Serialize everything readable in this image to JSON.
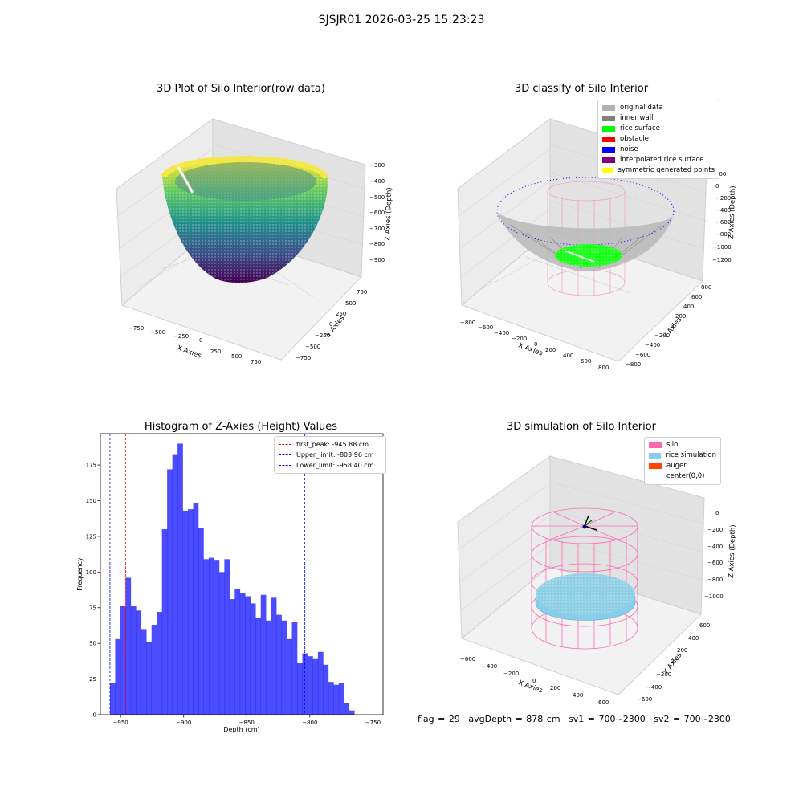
{
  "suptitle": "SJSJR01 2026-03-25 15:23:23",
  "panels": {
    "raw": {
      "title": "3D Plot of Silo Interior(row data)",
      "xlabel": "X Axies",
      "ylabel": "Y Axies",
      "zlabel": "Z Axies (Depth)",
      "xticks": [
        "−750",
        "−500",
        "−250",
        "0",
        "250",
        "500",
        "750"
      ],
      "yticks": [
        "750",
        "500",
        "250",
        "0",
        "−250",
        "−500",
        "−750"
      ],
      "zticks": [
        "−300",
        "−400",
        "−500",
        "−600",
        "−700",
        "−800",
        "−900"
      ]
    },
    "classify": {
      "title": "3D classify of Silo Interior",
      "xlabel": "X Axies",
      "ylabel": "Y Axies",
      "zlabel": "Z Axies (Depth)",
      "xticks": [
        "−800",
        "−600",
        "−400",
        "−200",
        "0",
        "200",
        "400",
        "600",
        "800"
      ],
      "yticks": [
        "800",
        "600",
        "400",
        "200",
        "0",
        "−200",
        "−400",
        "−600",
        "−800"
      ],
      "zticks": [
        "200",
        "0",
        "−200",
        "−400",
        "−600",
        "−800",
        "−1000",
        "−1200"
      ],
      "legend": [
        {
          "label": "original data",
          "color": "#b3b3b3"
        },
        {
          "label": "inner wall",
          "color": "#808080"
        },
        {
          "label": "rice surface",
          "color": "#00ff00"
        },
        {
          "label": "obstacle",
          "color": "#ff0000"
        },
        {
          "label": "noise",
          "color": "#0000ff"
        },
        {
          "label": "interpolated rice surface",
          "color": "#800080"
        },
        {
          "label": "symmetric generated points",
          "color": "#ffff00"
        }
      ]
    },
    "simulation": {
      "title": "3D simulation of Silo Interior",
      "xlabel": "X Axies",
      "ylabel": "Y Axies",
      "zlabel": "Z Axies (Depth)",
      "xticks": [
        "−600",
        "−400",
        "−200",
        "0",
        "200",
        "400",
        "600"
      ],
      "yticks": [
        "600",
        "400",
        "200",
        "0",
        "−200",
        "−400",
        "−600"
      ],
      "zticks": [
        "0",
        "−200",
        "−400",
        "−600",
        "−800",
        "−1000"
      ],
      "legend": [
        {
          "label": "silo",
          "color": "#ff69b4"
        },
        {
          "label": "rice simulation",
          "color": "#87ceeb"
        },
        {
          "label": "auger",
          "color": "#ff4500"
        },
        {
          "label": "center(0,0)",
          "color": ""
        }
      ]
    }
  },
  "chart_data": {
    "type": "bar",
    "title": "Histogram of Z-Axies (Height) Values",
    "xlabel": "Depth (cm)",
    "ylabel": "Frequency",
    "bar_color": "#0000ff",
    "xlim": [
      -966,
      -742
    ],
    "ylim": [
      0,
      197
    ],
    "xticks": [
      -950,
      -900,
      -850,
      -800,
      -750
    ],
    "yticks": [
      0,
      25,
      50,
      75,
      100,
      125,
      150,
      175
    ],
    "bin_start": -958.4,
    "bin_width": 4.12,
    "values": [
      22,
      53,
      76,
      96,
      76,
      73,
      60,
      51,
      63,
      72,
      130,
      172,
      182,
      190,
      143,
      144,
      148,
      131,
      109,
      110,
      108,
      100,
      109,
      81,
      88,
      85,
      83,
      78,
      68,
      84,
      66,
      82,
      70,
      66,
      53,
      65,
      36,
      43,
      41,
      39,
      44,
      35,
      23,
      21,
      22,
      8,
      3
    ],
    "vlines": [
      {
        "label": "first_peak: -945.88 cm",
        "x": -945.88,
        "color": "#ff0000"
      },
      {
        "label": "Upper_limit: -803.96 cm",
        "x": -803.96,
        "color": "#0000ff"
      },
      {
        "label": "Lower_limit: -958.40 cm",
        "x": -958.4,
        "color": "#0000ff"
      }
    ],
    "legend_position": "top-right",
    "grid": false
  },
  "footer": {
    "flag": "flag = 29",
    "avg": "avgDepth = 878 cm",
    "sv1": "sv1 = 700~2300",
    "sv2": "sv2 = 700~2300"
  }
}
